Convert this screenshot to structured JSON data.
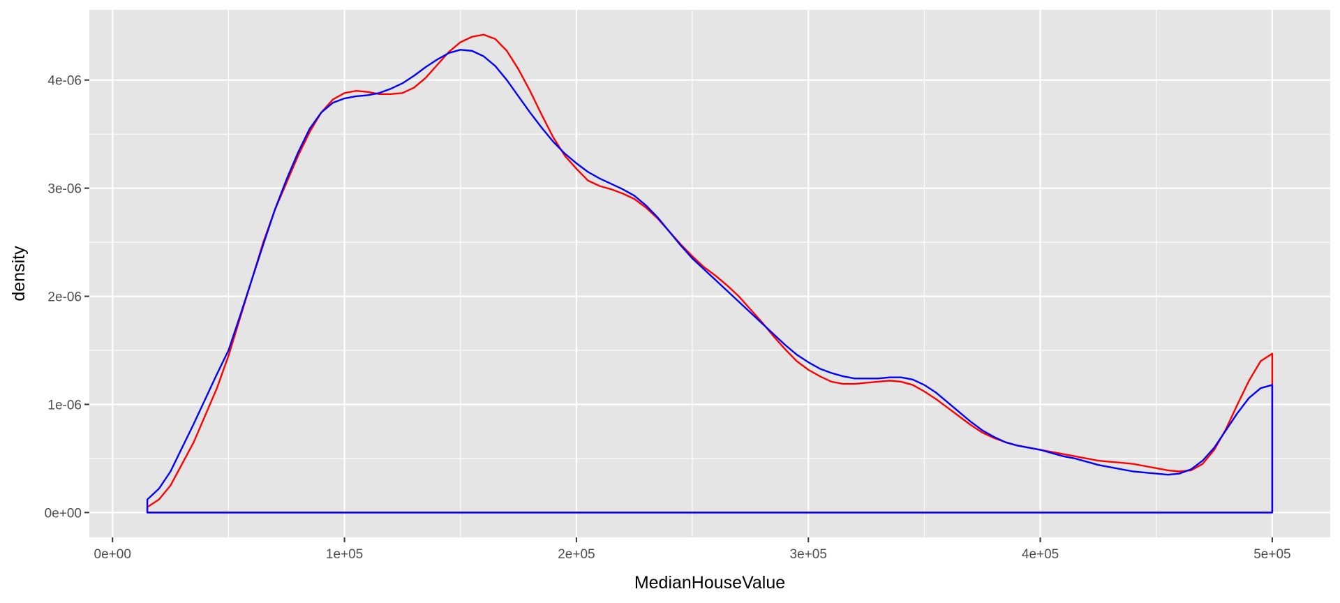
{
  "chart_data": {
    "type": "line",
    "title": "",
    "xlabel": "MedianHouseValue",
    "ylabel": "density",
    "xlim": [
      -10000,
      525000
    ],
    "ylim": [
      -2.3e-07,
      4.65e-06
    ],
    "x_ticks": [
      0,
      100000,
      200000,
      300000,
      400000,
      500000
    ],
    "x_tick_labels": [
      "0e+00",
      "1e+05",
      "2e+05",
      "3e+05",
      "4e+05",
      "5e+05"
    ],
    "y_ticks": [
      0,
      1e-06,
      2e-06,
      3e-06,
      4e-06
    ],
    "y_tick_labels": [
      "0e+00",
      "1e-06",
      "2e-06",
      "3e-06",
      "4e-06"
    ],
    "grid": true,
    "panel_background": "#e5e5e5",
    "series": [
      {
        "color": "#ff0000",
        "points": [
          [
            15000,
            5e-08
          ],
          [
            20000,
            1.2e-07
          ],
          [
            25000,
            2.5e-07
          ],
          [
            30000,
            4.5e-07
          ],
          [
            35000,
            6.5e-07
          ],
          [
            40000,
            9e-07
          ],
          [
            45000,
            1.15e-06
          ],
          [
            50000,
            1.45e-06
          ],
          [
            55000,
            1.8e-06
          ],
          [
            60000,
            2.15e-06
          ],
          [
            65000,
            2.5e-06
          ],
          [
            70000,
            2.8e-06
          ],
          [
            75000,
            3.05e-06
          ],
          [
            80000,
            3.3e-06
          ],
          [
            85000,
            3.52e-06
          ],
          [
            90000,
            3.7e-06
          ],
          [
            95000,
            3.82e-06
          ],
          [
            100000,
            3.88e-06
          ],
          [
            105000,
            3.9e-06
          ],
          [
            110000,
            3.89e-06
          ],
          [
            115000,
            3.87e-06
          ],
          [
            120000,
            3.87e-06
          ],
          [
            125000,
            3.88e-06
          ],
          [
            130000,
            3.93e-06
          ],
          [
            135000,
            4.02e-06
          ],
          [
            140000,
            4.14e-06
          ],
          [
            145000,
            4.26e-06
          ],
          [
            150000,
            4.35e-06
          ],
          [
            155000,
            4.4e-06
          ],
          [
            160000,
            4.42e-06
          ],
          [
            165000,
            4.38e-06
          ],
          [
            170000,
            4.27e-06
          ],
          [
            175000,
            4.1e-06
          ],
          [
            180000,
            3.9e-06
          ],
          [
            185000,
            3.68e-06
          ],
          [
            190000,
            3.47e-06
          ],
          [
            195000,
            3.3e-06
          ],
          [
            200000,
            3.18e-06
          ],
          [
            205000,
            3.07e-06
          ],
          [
            210000,
            3.02e-06
          ],
          [
            215000,
            2.99e-06
          ],
          [
            220000,
            2.95e-06
          ],
          [
            225000,
            2.9e-06
          ],
          [
            230000,
            2.82e-06
          ],
          [
            235000,
            2.72e-06
          ],
          [
            240000,
            2.6e-06
          ],
          [
            245000,
            2.48e-06
          ],
          [
            250000,
            2.37e-06
          ],
          [
            255000,
            2.27e-06
          ],
          [
            260000,
            2.19e-06
          ],
          [
            265000,
            2.1e-06
          ],
          [
            270000,
            2e-06
          ],
          [
            275000,
            1.88e-06
          ],
          [
            280000,
            1.76e-06
          ],
          [
            285000,
            1.63e-06
          ],
          [
            290000,
            1.51e-06
          ],
          [
            295000,
            1.4e-06
          ],
          [
            300000,
            1.32e-06
          ],
          [
            305000,
            1.26e-06
          ],
          [
            310000,
            1.21e-06
          ],
          [
            315000,
            1.19e-06
          ],
          [
            320000,
            1.19e-06
          ],
          [
            325000,
            1.2e-06
          ],
          [
            330000,
            1.21e-06
          ],
          [
            335000,
            1.22e-06
          ],
          [
            340000,
            1.21e-06
          ],
          [
            345000,
            1.18e-06
          ],
          [
            350000,
            1.12e-06
          ],
          [
            355000,
            1.05e-06
          ],
          [
            360000,
            9.7e-07
          ],
          [
            365000,
            8.9e-07
          ],
          [
            370000,
            8.1e-07
          ],
          [
            375000,
            7.4e-07
          ],
          [
            380000,
            6.9e-07
          ],
          [
            385000,
            6.5e-07
          ],
          [
            390000,
            6.2e-07
          ],
          [
            395000,
            6e-07
          ],
          [
            400000,
            5.8e-07
          ],
          [
            405000,
            5.6e-07
          ],
          [
            410000,
            5.4e-07
          ],
          [
            415000,
            5.2e-07
          ],
          [
            420000,
            5e-07
          ],
          [
            425000,
            4.8e-07
          ],
          [
            430000,
            4.7e-07
          ],
          [
            435000,
            4.6e-07
          ],
          [
            440000,
            4.5e-07
          ],
          [
            445000,
            4.3e-07
          ],
          [
            450000,
            4.1e-07
          ],
          [
            455000,
            3.9e-07
          ],
          [
            460000,
            3.8e-07
          ],
          [
            465000,
            3.9e-07
          ],
          [
            470000,
            4.5e-07
          ],
          [
            475000,
            5.8e-07
          ],
          [
            480000,
            7.7e-07
          ],
          [
            485000,
            1e-06
          ],
          [
            490000,
            1.22e-06
          ],
          [
            495000,
            1.4e-06
          ],
          [
            500000,
            1.47e-06
          ]
        ]
      },
      {
        "color": "#0000ff",
        "points": [
          [
            15000,
            1.2e-07
          ],
          [
            20000,
            2.2e-07
          ],
          [
            25000,
            3.8e-07
          ],
          [
            30000,
            6e-07
          ],
          [
            35000,
            8.2e-07
          ],
          [
            40000,
            1.05e-06
          ],
          [
            45000,
            1.28e-06
          ],
          [
            50000,
            1.5e-06
          ],
          [
            55000,
            1.82e-06
          ],
          [
            60000,
            2.15e-06
          ],
          [
            65000,
            2.48e-06
          ],
          [
            70000,
            2.8e-06
          ],
          [
            75000,
            3.08e-06
          ],
          [
            80000,
            3.33e-06
          ],
          [
            85000,
            3.55e-06
          ],
          [
            90000,
            3.7e-06
          ],
          [
            95000,
            3.79e-06
          ],
          [
            100000,
            3.83e-06
          ],
          [
            105000,
            3.85e-06
          ],
          [
            110000,
            3.86e-06
          ],
          [
            115000,
            3.88e-06
          ],
          [
            120000,
            3.92e-06
          ],
          [
            125000,
            3.97e-06
          ],
          [
            130000,
            4.04e-06
          ],
          [
            135000,
            4.12e-06
          ],
          [
            140000,
            4.19e-06
          ],
          [
            145000,
            4.25e-06
          ],
          [
            150000,
            4.28e-06
          ],
          [
            155000,
            4.27e-06
          ],
          [
            160000,
            4.22e-06
          ],
          [
            165000,
            4.13e-06
          ],
          [
            170000,
            4e-06
          ],
          [
            175000,
            3.85e-06
          ],
          [
            180000,
            3.7e-06
          ],
          [
            185000,
            3.56e-06
          ],
          [
            190000,
            3.43e-06
          ],
          [
            195000,
            3.32e-06
          ],
          [
            200000,
            3.23e-06
          ],
          [
            205000,
            3.15e-06
          ],
          [
            210000,
            3.09e-06
          ],
          [
            215000,
            3.04e-06
          ],
          [
            220000,
            2.99e-06
          ],
          [
            225000,
            2.93e-06
          ],
          [
            230000,
            2.84e-06
          ],
          [
            235000,
            2.73e-06
          ],
          [
            240000,
            2.6e-06
          ],
          [
            245000,
            2.47e-06
          ],
          [
            250000,
            2.35e-06
          ],
          [
            255000,
            2.25e-06
          ],
          [
            260000,
            2.15e-06
          ],
          [
            265000,
            2.05e-06
          ],
          [
            270000,
            1.95e-06
          ],
          [
            275000,
            1.85e-06
          ],
          [
            280000,
            1.75e-06
          ],
          [
            285000,
            1.65e-06
          ],
          [
            290000,
            1.55e-06
          ],
          [
            295000,
            1.46e-06
          ],
          [
            300000,
            1.39e-06
          ],
          [
            305000,
            1.33e-06
          ],
          [
            310000,
            1.29e-06
          ],
          [
            315000,
            1.26e-06
          ],
          [
            320000,
            1.24e-06
          ],
          [
            325000,
            1.24e-06
          ],
          [
            330000,
            1.24e-06
          ],
          [
            335000,
            1.25e-06
          ],
          [
            340000,
            1.25e-06
          ],
          [
            345000,
            1.23e-06
          ],
          [
            350000,
            1.18e-06
          ],
          [
            355000,
            1.11e-06
          ],
          [
            360000,
            1.02e-06
          ],
          [
            365000,
            9.3e-07
          ],
          [
            370000,
            8.4e-07
          ],
          [
            375000,
            7.6e-07
          ],
          [
            380000,
            7e-07
          ],
          [
            385000,
            6.5e-07
          ],
          [
            390000,
            6.2e-07
          ],
          [
            395000,
            6e-07
          ],
          [
            400000,
            5.8e-07
          ],
          [
            405000,
            5.5e-07
          ],
          [
            410000,
            5.2e-07
          ],
          [
            415000,
            5e-07
          ],
          [
            420000,
            4.7e-07
          ],
          [
            425000,
            4.4e-07
          ],
          [
            430000,
            4.2e-07
          ],
          [
            435000,
            4e-07
          ],
          [
            440000,
            3.8e-07
          ],
          [
            445000,
            3.7e-07
          ],
          [
            450000,
            3.6e-07
          ],
          [
            455000,
            3.5e-07
          ],
          [
            460000,
            3.6e-07
          ],
          [
            465000,
            4e-07
          ],
          [
            470000,
            4.8e-07
          ],
          [
            475000,
            6e-07
          ],
          [
            480000,
            7.6e-07
          ],
          [
            485000,
            9.2e-07
          ],
          [
            490000,
            1.06e-06
          ],
          [
            495000,
            1.15e-06
          ],
          [
            500000,
            1.18e-06
          ]
        ]
      }
    ]
  }
}
